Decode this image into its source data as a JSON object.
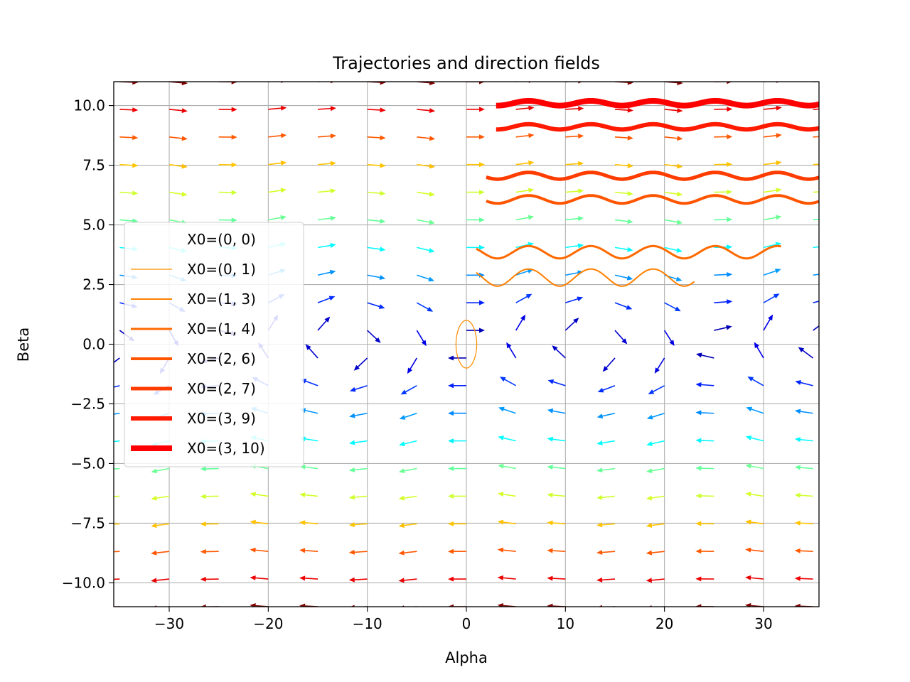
{
  "chart_data": {
    "type": "line",
    "title": "Trajectories and direction fields",
    "xlabel": "Alpha",
    "ylabel": "Beta",
    "xlim": [
      -35.6,
      35.6
    ],
    "ylim": [
      -11,
      11
    ],
    "xticks": [
      -30,
      -20,
      -10,
      0,
      10,
      20,
      30
    ],
    "xtick_labels": [
      "−30",
      "−20",
      "−10",
      "0",
      "10",
      "20",
      "30"
    ],
    "yticks": [
      10,
      7.5,
      5,
      2.5,
      0,
      -2.5,
      -5,
      -7.5,
      -10
    ],
    "ytick_labels": [
      "10.0",
      "7.5",
      "5.0",
      "2.5",
      "0.0",
      "−2.5",
      "−5.0",
      "−7.5",
      "−10.0"
    ],
    "grid": true,
    "legend_position": "center-left",
    "colormap": "jet",
    "direction_field": {
      "x_range": [
        -35,
        35
      ],
      "y_range": [
        -11,
        11
      ],
      "nx": 15,
      "ny": 20,
      "system": "alpha' = beta, beta' = -sin(alpha)",
      "arrows": "normalized, colored by magnitude"
    },
    "series": [
      {
        "name": "X0=(0, 0)",
        "x0": [
          0,
          0
        ],
        "color": "#ffffff",
        "linewidth": 1
      },
      {
        "name": "X0=(0, 1)",
        "x0": [
          0,
          1
        ],
        "color": "#ff8c00",
        "linewidth": 1.2
      },
      {
        "name": "X0=(1, 3)",
        "x0": [
          1,
          3
        ],
        "color": "#ff8000",
        "linewidth": 2
      },
      {
        "name": "X0=(1, 4)",
        "x0": [
          1,
          4
        ],
        "color": "#ff6a00",
        "linewidth": 3
      },
      {
        "name": "X0=(2, 6)",
        "x0": [
          2,
          6
        ],
        "color": "#ff5500",
        "linewidth": 4
      },
      {
        "name": "X0=(2, 7)",
        "x0": [
          2,
          7
        ],
        "color": "#ff3c00",
        "linewidth": 5
      },
      {
        "name": "X0=(3, 9)",
        "x0": [
          3,
          9
        ],
        "color": "#ff1a00",
        "linewidth": 6
      },
      {
        "name": "X0=(3, 10)",
        "x0": [
          3,
          10
        ],
        "color": "#ff0000",
        "linewidth": 8
      }
    ]
  }
}
